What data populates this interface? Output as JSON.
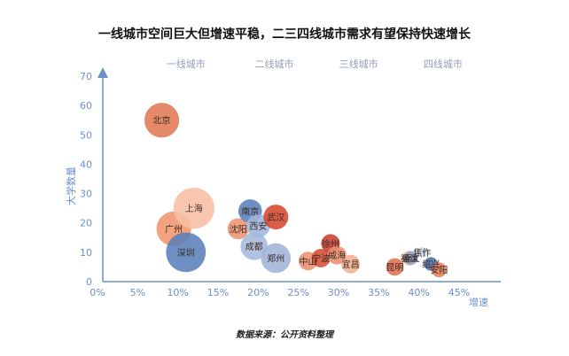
{
  "title": "一线城市空间巨大但增速平稳，二三四线城市需求有望保持快速增长",
  "source": "数据来源：公开资料整理",
  "chart_data": {
    "type": "scatter",
    "title": "一线城市空间巨大但增速平稳，二三四线城市需求有望保持快速增长",
    "xlabel": "增速",
    "ylabel": "大学数量",
    "xlim": [
      0,
      0.45
    ],
    "ylim": [
      0,
      70
    ],
    "x_ticks": [
      "0%",
      "5%",
      "10%",
      "15%",
      "20%",
      "25%",
      "30%",
      "35%",
      "40%",
      "45%"
    ],
    "y_ticks": [
      "0",
      "10",
      "20",
      "30",
      "40",
      "50",
      "60",
      "70"
    ],
    "tier_labels": [
      {
        "label": "一线城市",
        "x": 0.11
      },
      {
        "label": "二线城市",
        "x": 0.22
      },
      {
        "label": "三线城市",
        "x": 0.325
      },
      {
        "label": "四线城市",
        "x": 0.43
      }
    ],
    "points": [
      {
        "name": "北京",
        "x": 0.08,
        "y": 55,
        "r": 1.4,
        "color": "#e07a56"
      },
      {
        "name": "广州",
        "x": 0.095,
        "y": 18,
        "r": 1.4,
        "color": "#f0956c"
      },
      {
        "name": "上海",
        "x": 0.12,
        "y": 25,
        "r": 1.65,
        "color": "#f7bea4"
      },
      {
        "name": "深圳",
        "x": 0.11,
        "y": 10,
        "r": 1.6,
        "color": "#5a7fb8"
      },
      {
        "name": "沈阳",
        "x": 0.175,
        "y": 18,
        "r": 0.85,
        "color": "#ee9470"
      },
      {
        "name": "南京",
        "x": 0.19,
        "y": 24,
        "r": 0.95,
        "color": "#5a7fb8"
      },
      {
        "name": "西安",
        "x": 0.2,
        "y": 19,
        "r": 0.95,
        "color": "#9fb6dc"
      },
      {
        "name": "武汉",
        "x": 0.222,
        "y": 22,
        "r": 1.0,
        "color": "#d64830"
      },
      {
        "name": "成都",
        "x": 0.195,
        "y": 12,
        "r": 1.1,
        "color": "#a5b9dc"
      },
      {
        "name": "郑州",
        "x": 0.222,
        "y": 8,
        "r": 1.2,
        "color": "#9fb3d8"
      },
      {
        "name": "中山",
        "x": 0.262,
        "y": 7,
        "r": 0.75,
        "color": "#ea9070"
      },
      {
        "name": "宁波",
        "x": 0.278,
        "y": 8,
        "r": 0.75,
        "color": "#d84c32"
      },
      {
        "name": "徐州",
        "x": 0.29,
        "y": 13,
        "r": 0.75,
        "color": "#c94030"
      },
      {
        "name": "威海",
        "x": 0.298,
        "y": 9,
        "r": 0.75,
        "color": "#eb9070"
      },
      {
        "name": "宜昌",
        "x": 0.315,
        "y": 6,
        "r": 0.75,
        "color": "#f2b090"
      },
      {
        "name": "昆明",
        "x": 0.37,
        "y": 5,
        "r": 0.7,
        "color": "#e3704f"
      },
      {
        "name": "福建",
        "x": 0.388,
        "y": 8,
        "r": 0.6,
        "color": "#f4c2a8"
      },
      {
        "name": "遵义",
        "x": 0.39,
        "y": 8,
        "r": 0.55,
        "color": "#8ca6d0"
      },
      {
        "name": "焦作",
        "x": 0.404,
        "y": 10,
        "r": 0.4,
        "color": "#c4d2e6"
      },
      {
        "name": "绍兴",
        "x": 0.415,
        "y": 6,
        "r": 0.55,
        "color": "#4b6fa8"
      },
      {
        "name": "安阳",
        "x": 0.425,
        "y": 4,
        "r": 0.6,
        "color": "#e58058"
      }
    ],
    "grid": false,
    "legend": "none"
  }
}
